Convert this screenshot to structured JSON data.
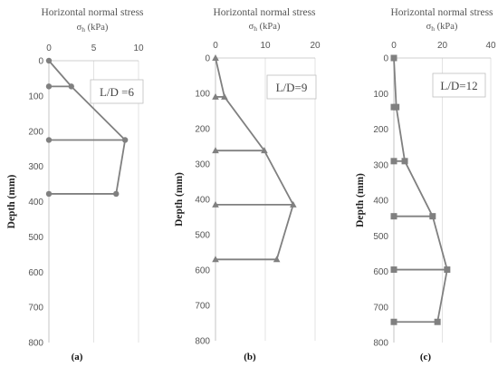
{
  "figure": {
    "letters": [
      "(a)",
      "(b)",
      "(c)"
    ]
  },
  "chart_data": [
    {
      "type": "line",
      "x_title": "Horizontal normal stress",
      "x_symbol": "σ",
      "x_symbol_sub": "h",
      "x_unit": "(kPa)",
      "ylabel": "Depth (mm)",
      "xlim": [
        0,
        10
      ],
      "xticks": [
        0,
        5,
        10
      ],
      "ylim": [
        0,
        800
      ],
      "yticks": [
        0,
        100,
        200,
        300,
        400,
        500,
        600,
        700,
        800
      ],
      "annotation": "L/D =6",
      "marker": "circle",
      "color": "#808080",
      "series": [
        {
          "x": [
            0,
            2.5,
            8.5,
            7.5
          ],
          "y": [
            0,
            73,
            225,
            378
          ]
        }
      ],
      "baseline_links": [
        73,
        225,
        378
      ]
    },
    {
      "type": "line",
      "x_title": "Horizontal normal stress",
      "x_symbol": "σ",
      "x_symbol_sub": "h",
      "x_unit": "(kPa)",
      "ylabel": "Depth (mm)",
      "xlim": [
        0,
        20
      ],
      "xticks": [
        0,
        10,
        20
      ],
      "ylim": [
        0,
        800
      ],
      "yticks": [
        0,
        100,
        200,
        300,
        400,
        500,
        600,
        700,
        800
      ],
      "annotation": "L/D=9",
      "marker": "triangle",
      "color": "#808080",
      "series": [
        {
          "x": [
            0,
            1.8,
            9.8,
            15.6,
            12.3
          ],
          "y": [
            0,
            110,
            262,
            415,
            570
          ]
        }
      ],
      "baseline_links": [
        110,
        262,
        415,
        570
      ]
    },
    {
      "type": "line",
      "x_title": "Horizontal normal stress",
      "x_symbol": "σ",
      "x_symbol_sub": "h",
      "x_unit": "(kPa)",
      "ylabel": "Depth (mm)",
      "xlim": [
        0,
        40
      ],
      "xticks": [
        0,
        20,
        40
      ],
      "ylim": [
        0,
        800
      ],
      "yticks": [
        0,
        100,
        200,
        300,
        400,
        500,
        600,
        700,
        800
      ],
      "annotation": "L/D=12",
      "marker": "square",
      "color": "#808080",
      "series": [
        {
          "x": [
            0,
            1,
            4.5,
            16,
            22,
            18
          ],
          "y": [
            0,
            138,
            290,
            445,
            595,
            742
          ]
        }
      ],
      "baseline_links": [
        138,
        290,
        445,
        595,
        742
      ]
    }
  ]
}
